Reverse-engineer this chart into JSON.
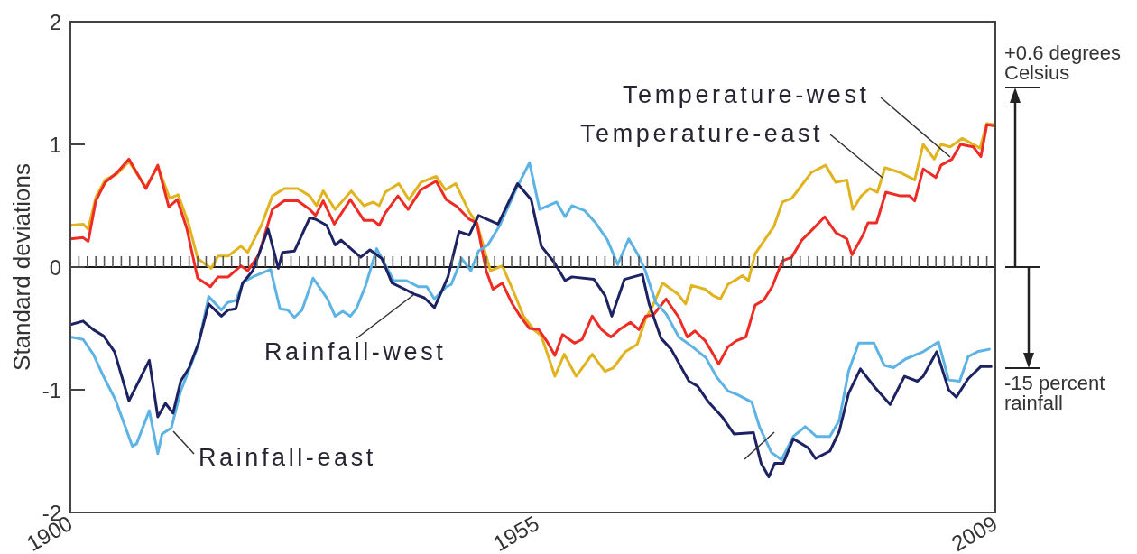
{
  "chart_data": {
    "type": "line",
    "ylabel": "Standard deviations",
    "xlim": [
      1900,
      2009
    ],
    "ylim": [
      -2,
      2
    ],
    "yticks": [
      -2,
      -1,
      0,
      1,
      2
    ],
    "xticks": [
      1900,
      {
        "value": 1901,
        "label": null
      },
      {
        "value": 1902,
        "label": null
      },
      {
        "value": 1903,
        "label": null
      },
      {
        "value": 1904,
        "label": null
      },
      {
        "value": 1905,
        "label": null
      },
      {
        "value": 1906,
        "label": null
      },
      {
        "value": 1907,
        "label": null
      },
      {
        "value": 1908,
        "label": null
      },
      {
        "value": 1909,
        "label": null
      },
      {
        "value": 1910,
        "label": null
      },
      {
        "value": 1911,
        "label": null
      },
      {
        "value": 1912,
        "label": null
      },
      {
        "value": 1913,
        "label": null
      },
      {
        "value": 1914,
        "label": null
      },
      {
        "value": 1915,
        "label": null
      },
      {
        "value": 1916,
        "label": null
      },
      {
        "value": 1917,
        "label": null
      },
      {
        "value": 1918,
        "label": null
      },
      {
        "value": 1919,
        "label": null
      },
      {
        "value": 1920,
        "label": null
      },
      {
        "value": 1921,
        "label": null
      },
      {
        "value": 1922,
        "label": null
      },
      {
        "value": 1923,
        "label": null
      },
      {
        "value": 1924,
        "label": null
      },
      {
        "value": 1925,
        "label": null
      },
      {
        "value": 1926,
        "label": null
      },
      {
        "value": 1927,
        "label": null
      },
      {
        "value": 1928,
        "label": null
      },
      {
        "value": 1929,
        "label": null
      },
      {
        "value": 1930,
        "label": null
      },
      {
        "value": 1931,
        "label": null
      },
      {
        "value": 1932,
        "label": null
      },
      {
        "value": 1933,
        "label": null
      },
      {
        "value": 1934,
        "label": null
      },
      {
        "value": 1935,
        "label": null
      },
      {
        "value": 1936,
        "label": null
      },
      {
        "value": 1937,
        "label": null
      },
      {
        "value": 1938,
        "label": null
      },
      {
        "value": 1939,
        "label": null
      },
      {
        "value": 1940,
        "label": null
      },
      {
        "value": 1941,
        "label": null
      },
      {
        "value": 1942,
        "label": null
      },
      {
        "value": 1943,
        "label": null
      },
      {
        "value": 1944,
        "label": null
      },
      {
        "value": 1945,
        "label": null
      },
      {
        "value": 1946,
        "label": null
      },
      {
        "value": 1947,
        "label": null
      },
      {
        "value": 1948,
        "label": null
      },
      {
        "value": 1949,
        "label": null
      },
      {
        "value": 1950,
        "label": null
      },
      {
        "value": 1951,
        "label": null
      },
      {
        "value": 1952,
        "label": null
      },
      {
        "value": 1953,
        "label": null
      },
      {
        "value": 1954,
        "label": null
      },
      1955,
      {
        "value": 1956,
        "label": null
      },
      {
        "value": 1957,
        "label": null
      },
      {
        "value": 1958,
        "label": null
      },
      {
        "value": 1959,
        "label": null
      },
      {
        "value": 1960,
        "label": null
      },
      {
        "value": 1961,
        "label": null
      },
      {
        "value": 1962,
        "label": null
      },
      {
        "value": 1963,
        "label": null
      },
      {
        "value": 1964,
        "label": null
      },
      {
        "value": 1965,
        "label": null
      },
      {
        "value": 1966,
        "label": null
      },
      {
        "value": 1967,
        "label": null
      },
      {
        "value": 1968,
        "label": null
      },
      {
        "value": 1969,
        "label": null
      },
      {
        "value": 1970,
        "label": null
      },
      {
        "value": 1971,
        "label": null
      },
      {
        "value": 1972,
        "label": null
      },
      {
        "value": 1973,
        "label": null
      },
      {
        "value": 1974,
        "label": null
      },
      {
        "value": 1975,
        "label": null
      },
      {
        "value": 1976,
        "label": null
      },
      {
        "value": 1977,
        "label": null
      },
      {
        "value": 1978,
        "label": null
      },
      {
        "value": 1979,
        "label": null
      },
      {
        "value": 1980,
        "label": null
      },
      {
        "value": 1981,
        "label": null
      },
      {
        "value": 1982,
        "label": null
      },
      {
        "value": 1983,
        "label": null
      },
      {
        "value": 1984,
        "label": null
      },
      {
        "value": 1985,
        "label": null
      },
      {
        "value": 1986,
        "label": null
      },
      {
        "value": 1987,
        "label": null
      },
      {
        "value": 1988,
        "label": null
      },
      {
        "value": 1989,
        "label": null
      },
      {
        "value": 1990,
        "label": null
      },
      {
        "value": 1991,
        "label": null
      },
      {
        "value": 1992,
        "label": null
      },
      {
        "value": 1993,
        "label": null
      },
      {
        "value": 1994,
        "label": null
      },
      {
        "value": 1995,
        "label": null
      },
      {
        "value": 1996,
        "label": null
      },
      {
        "value": 1997,
        "label": null
      },
      {
        "value": 1998,
        "label": null
      },
      {
        "value": 1999,
        "label": null
      },
      {
        "value": 2000,
        "label": null
      },
      {
        "value": 2001,
        "label": null
      },
      {
        "value": 2002,
        "label": null
      },
      {
        "value": 2003,
        "label": null
      },
      {
        "value": 2004,
        "label": null
      },
      {
        "value": 2005,
        "label": null
      },
      {
        "value": 2006,
        "label": null
      },
      {
        "value": 2007,
        "label": null
      },
      {
        "value": 2008,
        "label": null
      },
      2009
    ],
    "ref_lines": [
      {
        "axis": "y",
        "value": 0,
        "color": "#1a1a1a"
      }
    ],
    "annotations": [
      "+0.6 degrees Celsius",
      "-15 percent rainfall"
    ],
    "marker": "none",
    "line_style": "solid",
    "series": [
      {
        "name": "Temperature-east",
        "color": "#e0b31f",
        "x": [
          1900.0,
          1901.5,
          1902.1,
          1903.0,
          1904.1,
          1905.5,
          1906.9,
          1908.9,
          1910.3,
          1911.7,
          1912.7,
          1913.9,
          1915.0,
          1916.6,
          1917.4,
          1918.6,
          1920.1,
          1920.9,
          1922.5,
          1923.8,
          1925.2,
          1926.8,
          1928.2,
          1929.0,
          1929.8,
          1931.2,
          1933.1,
          1934.6,
          1935.7,
          1936.4,
          1937.1,
          1938.7,
          1939.9,
          1941.3,
          1943.1,
          1944.2,
          1945.4,
          1947.0,
          1947.9,
          1949.5,
          1950.9,
          1952.1,
          1953.4,
          1954.6,
          1955.5,
          1957.1,
          1958.2,
          1959.6,
          1961.5,
          1963.0,
          1964.0,
          1965.4,
          1966.8,
          1967.8,
          1968.6,
          1969.8,
          1971.6,
          1972.5,
          1973.2,
          1974.8,
          1975.7,
          1976.6,
          1977.5,
          1978.5,
          1979.2,
          1979.9,
          1980.7,
          1981.6,
          1982.9,
          1983.9,
          1985.0,
          1986.1,
          1987.3,
          1989.0,
          1990.2,
          1991.5,
          1992.2,
          1993.2,
          1994.2,
          1995.1,
          1996.0,
          1997.8,
          1999.5,
          2000.5,
          2001.8,
          2002.6,
          2003.7,
          2005.1,
          2006.4,
          2007.2,
          2008.0,
          2009.0
        ],
        "values": [
          0.34,
          0.35,
          0.31,
          0.57,
          0.71,
          0.76,
          0.86,
          0.65,
          0.82,
          0.56,
          0.59,
          0.36,
          0.07,
          -0.01,
          0.09,
          0.09,
          0.17,
          0.12,
          0.34,
          0.58,
          0.64,
          0.64,
          0.58,
          0.5,
          0.62,
          0.47,
          0.62,
          0.5,
          0.53,
          0.5,
          0.61,
          0.68,
          0.55,
          0.69,
          0.74,
          0.63,
          0.68,
          0.45,
          0.36,
          -0.03,
          0.01,
          -0.18,
          -0.4,
          -0.51,
          -0.56,
          -0.89,
          -0.71,
          -0.89,
          -0.71,
          -0.85,
          -0.82,
          -0.69,
          -0.63,
          -0.42,
          -0.32,
          -0.13,
          -0.22,
          -0.3,
          -0.15,
          -0.18,
          -0.23,
          -0.26,
          -0.14,
          -0.1,
          -0.07,
          -0.11,
          0.11,
          0.2,
          0.33,
          0.53,
          0.56,
          0.66,
          0.77,
          0.83,
          0.69,
          0.71,
          0.47,
          0.58,
          0.64,
          0.61,
          0.81,
          0.77,
          0.71,
          1.0,
          0.88,
          1.0,
          0.98,
          1.05,
          1.0,
          0.97,
          1.17,
          1.16
        ]
      },
      {
        "name": "Temperature-west",
        "color": "#ee2b24",
        "x": [
          1900.0,
          1901.5,
          1902.1,
          1903.0,
          1904.1,
          1905.5,
          1906.9,
          1908.9,
          1910.3,
          1911.6,
          1912.6,
          1913.7,
          1915.0,
          1916.5,
          1917.4,
          1918.6,
          1920.1,
          1920.9,
          1922.2,
          1923.8,
          1925.2,
          1926.8,
          1928.2,
          1928.9,
          1929.8,
          1931.1,
          1933.0,
          1934.6,
          1935.7,
          1936.4,
          1937.1,
          1938.6,
          1939.8,
          1941.3,
          1943.1,
          1944.3,
          1945.6,
          1947.0,
          1947.9,
          1949.0,
          1949.8,
          1950.9,
          1952.0,
          1953.0,
          1954.1,
          1955.2,
          1956.2,
          1957.1,
          1958.0,
          1959.4,
          1960.3,
          1961.5,
          1962.6,
          1963.7,
          1964.7,
          1966.0,
          1967.0,
          1967.8,
          1968.7,
          1970.2,
          1971.7,
          1972.7,
          1973.6,
          1974.8,
          1975.5,
          1976.4,
          1977.5,
          1978.5,
          1979.6,
          1980.7,
          1981.7,
          1982.7,
          1983.9,
          1985.0,
          1986.2,
          1987.5,
          1988.9,
          1990.2,
          1991.5,
          1992.1,
          1993.4,
          1994.0,
          1995.0,
          1996.1,
          1997.8,
          1998.9,
          1999.5,
          2000.5,
          2002.0,
          2002.6,
          2003.9,
          2004.9,
          2006.4,
          2007.3,
          2008.0,
          2009.0
        ],
        "values": [
          0.23,
          0.24,
          0.21,
          0.54,
          0.69,
          0.77,
          0.88,
          0.64,
          0.83,
          0.49,
          0.55,
          0.32,
          -0.09,
          -0.16,
          -0.08,
          -0.08,
          0.01,
          -0.03,
          0.1,
          0.47,
          0.54,
          0.54,
          0.47,
          0.42,
          0.54,
          0.35,
          0.55,
          0.38,
          0.38,
          0.34,
          0.44,
          0.58,
          0.47,
          0.63,
          0.7,
          0.55,
          0.49,
          0.39,
          0.36,
          -0.03,
          -0.18,
          -0.13,
          -0.29,
          -0.4,
          -0.5,
          -0.51,
          -0.61,
          -0.72,
          -0.55,
          -0.62,
          -0.59,
          -0.4,
          -0.51,
          -0.57,
          -0.51,
          -0.45,
          -0.51,
          -0.4,
          -0.39,
          -0.26,
          -0.41,
          -0.57,
          -0.52,
          -0.6,
          -0.68,
          -0.79,
          -0.65,
          -0.6,
          -0.57,
          -0.31,
          -0.27,
          -0.16,
          0.05,
          0.08,
          0.22,
          0.31,
          0.41,
          0.28,
          0.23,
          0.1,
          0.26,
          0.36,
          0.36,
          0.61,
          0.58,
          0.58,
          0.54,
          0.8,
          0.73,
          0.83,
          0.88,
          1.0,
          0.98,
          0.9,
          1.16,
          1.15
        ]
      },
      {
        "name": "Rainfall-east",
        "color": "#5cb3e4",
        "x": [
          1900.0,
          1901.5,
          1902.7,
          1903.9,
          1905.3,
          1907.3,
          1907.8,
          1909.3,
          1910.3,
          1910.8,
          1911.9,
          1913.0,
          1914.2,
          1915.1,
          1916.3,
          1917.8,
          1918.5,
          1919.5,
          1920.4,
          1921.8,
          1923.6,
          1924.7,
          1925.6,
          1926.4,
          1927.3,
          1928.6,
          1930.3,
          1931.2,
          1932.1,
          1933.0,
          1933.7,
          1934.8,
          1936.1,
          1938.1,
          1939.6,
          1941.0,
          1942.0,
          1942.9,
          1944.3,
          1944.9,
          1946.1,
          1947.2,
          1948.1,
          1949.2,
          1950.6,
          1952.7,
          1954.1,
          1955.3,
          1957.3,
          1958.3,
          1959.1,
          1960.6,
          1961.9,
          1963.3,
          1964.5,
          1965.8,
          1966.9,
          1967.7,
          1969.0,
          1970.2,
          1971.7,
          1973.3,
          1974.9,
          1976.2,
          1977.5,
          1978.6,
          1980.3,
          1981.2,
          1982.6,
          1983.8,
          1985.2,
          1986.6,
          1987.9,
          1989.5,
          1990.6,
          1991.7,
          1992.9,
          1994.7,
          1995.9,
          1997.0,
          1998.4,
          2000.5,
          2002.3,
          2003.5,
          2004.8,
          2005.8,
          2006.9,
          2008.3
        ],
        "values": [
          -0.57,
          -0.59,
          -0.71,
          -0.89,
          -1.08,
          -1.46,
          -1.44,
          -1.17,
          -1.52,
          -1.36,
          -1.31,
          -1.01,
          -0.8,
          -0.63,
          -0.24,
          -0.35,
          -0.29,
          -0.27,
          -0.12,
          -0.07,
          -0.02,
          -0.34,
          -0.35,
          -0.41,
          -0.35,
          -0.09,
          -0.26,
          -0.4,
          -0.36,
          -0.4,
          -0.34,
          -0.15,
          0.15,
          -0.11,
          -0.11,
          -0.16,
          -0.16,
          -0.26,
          -0.16,
          -0.14,
          0.07,
          -0.03,
          0.13,
          0.18,
          0.34,
          0.66,
          0.85,
          0.47,
          0.53,
          0.41,
          0.5,
          0.46,
          0.36,
          0.22,
          0.02,
          0.23,
          0.1,
          -0.02,
          -0.29,
          -0.38,
          -0.57,
          -0.65,
          -0.74,
          -0.9,
          -1.01,
          -1.04,
          -1.1,
          -1.3,
          -1.51,
          -1.57,
          -1.38,
          -1.3,
          -1.38,
          -1.38,
          -1.25,
          -0.85,
          -0.62,
          -0.62,
          -0.8,
          -0.82,
          -0.75,
          -0.69,
          -0.61,
          -0.92,
          -0.93,
          -0.73,
          -0.69,
          -0.67
        ]
      },
      {
        "name": "Rainfall-west",
        "color": "#1d2263",
        "x": [
          1900.0,
          1901.5,
          1902.7,
          1903.9,
          1905.2,
          1906.9,
          1909.3,
          1910.3,
          1911.2,
          1912.1,
          1913.0,
          1914.0,
          1915.1,
          1916.3,
          1917.8,
          1918.6,
          1919.5,
          1920.3,
          1921.5,
          1923.3,
          1924.5,
          1925.0,
          1926.4,
          1928.2,
          1928.9,
          1930.2,
          1931.2,
          1931.9,
          1934.2,
          1935.3,
          1936.7,
          1937.9,
          1939.4,
          1940.5,
          1941.7,
          1942.9,
          1944.5,
          1945.8,
          1947.0,
          1948.1,
          1950.4,
          1952.7,
          1954.3,
          1955.5,
          1957.0,
          1958.3,
          1959.1,
          1961.7,
          1963.0,
          1963.8,
          1965.3,
          1967.4,
          1968.2,
          1969.6,
          1970.8,
          1972.9,
          1973.9,
          1975.2,
          1976.8,
          1978.2,
          1980.5,
          1981.4,
          1982.3,
          1983.0,
          1984.0,
          1985.2,
          1986.9,
          1987.8,
          1989.5,
          1990.6,
          1991.7,
          1993.1,
          1994.8,
          1996.6,
          1998.3,
          1999.8,
          2000.5,
          2002.1,
          2003.5,
          2004.4,
          2005.8,
          2007.3,
          2008.5
        ],
        "values": [
          -0.47,
          -0.44,
          -0.51,
          -0.56,
          -0.69,
          -1.09,
          -0.76,
          -1.22,
          -1.11,
          -1.19,
          -0.93,
          -0.82,
          -0.62,
          -0.3,
          -0.4,
          -0.35,
          -0.34,
          -0.13,
          -0.03,
          0.31,
          -0.01,
          0.12,
          0.13,
          0.4,
          0.39,
          0.34,
          0.18,
          0.22,
          0.08,
          0.14,
          0.07,
          -0.13,
          -0.18,
          -0.22,
          -0.25,
          -0.33,
          -0.08,
          0.29,
          0.26,
          0.42,
          0.35,
          0.68,
          0.55,
          0.17,
          0.04,
          -0.11,
          -0.08,
          -0.1,
          -0.23,
          -0.4,
          -0.1,
          -0.06,
          -0.3,
          -0.58,
          -0.67,
          -0.93,
          -0.97,
          -1.1,
          -1.22,
          -1.36,
          -1.35,
          -1.6,
          -1.71,
          -1.6,
          -1.6,
          -1.4,
          -1.47,
          -1.56,
          -1.5,
          -1.34,
          -1.03,
          -0.83,
          -0.98,
          -1.12,
          -0.89,
          -0.93,
          -0.89,
          -0.69,
          -1.0,
          -1.06,
          -0.91,
          -0.81,
          -0.81
        ]
      }
    ]
  }
}
